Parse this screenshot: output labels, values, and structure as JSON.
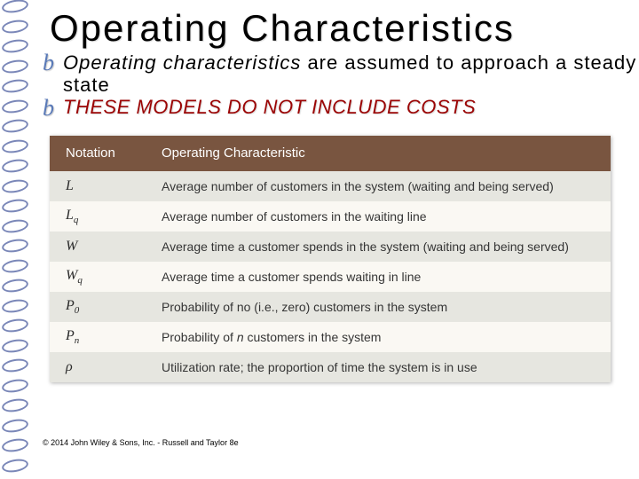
{
  "title": "Operating Characteristics",
  "bullets": {
    "b1_emph": "Operating characteristics",
    "b1_rest": " are assumed to approach a steady state",
    "b2": "THESE MODELS DO NOT INCLUDE COSTS"
  },
  "bullet_glyph": "b",
  "table": {
    "header_bg": "#795540",
    "header_fg": "#ffffff",
    "row_even_bg": "#e6e6e0",
    "row_odd_bg": "#faf8f3",
    "col_headers": {
      "a": "Notation",
      "b": "Operating Characteristic"
    },
    "rows": [
      {
        "a": "L",
        "b": "Average number of customers in the system (waiting and being served)"
      },
      {
        "a": "L_q",
        "b": "Average number of customers in the waiting line"
      },
      {
        "a": "W",
        "b": "Average time a customer spends in the system (waiting and being served)"
      },
      {
        "a": "W_q",
        "b": "Average time a customer spends waiting in line"
      },
      {
        "a": "P_0",
        "b": "Probability of no (i.e., zero) customers in the system"
      },
      {
        "a": "P_n",
        "b": "Probability of n customers in the system"
      },
      {
        "a": "rho",
        "b": "Utilization rate; the proportion of time the system is in use"
      }
    ]
  },
  "footer": "© 2014 John Wiley & Sons, Inc. - Russell and Taylor 8e",
  "spiral": {
    "count": 24,
    "color": "#7a87b8"
  }
}
